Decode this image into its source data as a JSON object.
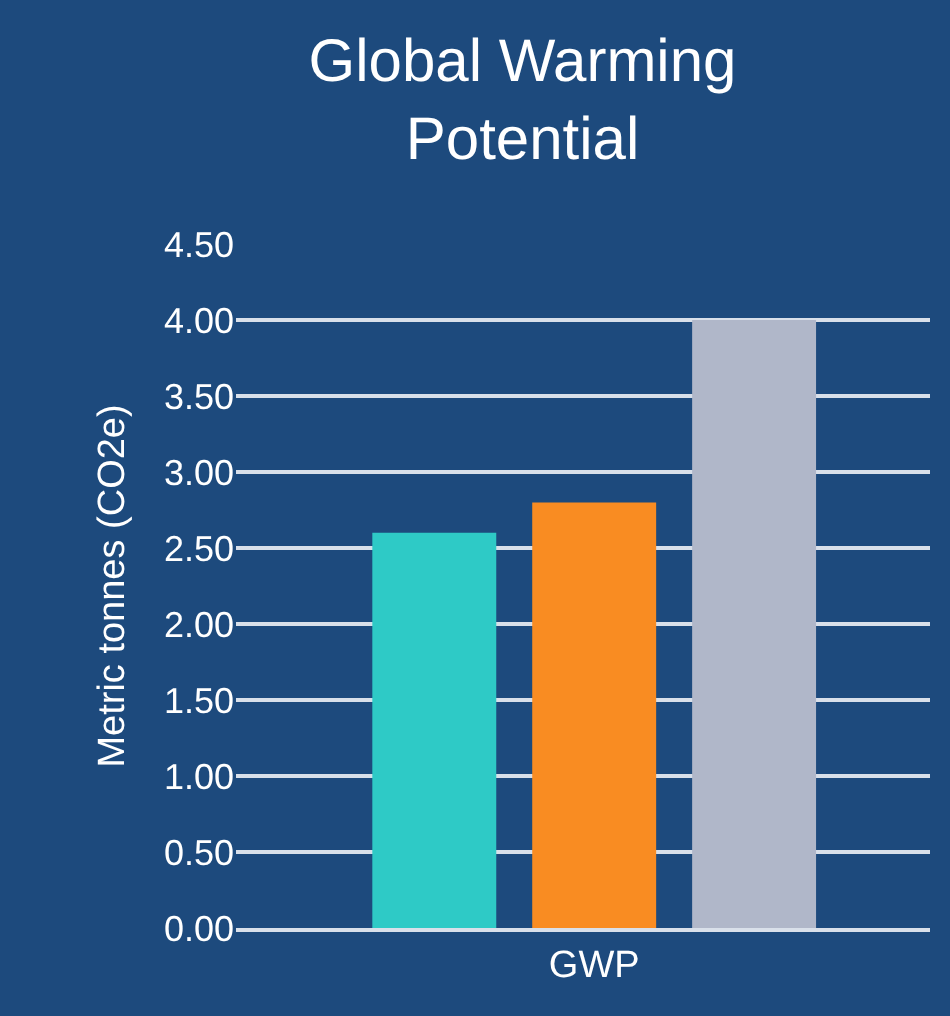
{
  "chart_data": {
    "type": "bar",
    "title": "Global Warming Potential",
    "ylabel": "Metric tonnes (CO2e)",
    "categories": [
      null,
      "GWP",
      null
    ],
    "values": [
      2.6,
      2.8,
      4.0
    ],
    "colors": [
      "#2ecac6",
      "#f98c22",
      "#b0b7c9"
    ],
    "ylim": [
      0,
      4.5
    ],
    "yticks": [
      {
        "value": 0,
        "label": "0.00"
      },
      {
        "value": 0.5,
        "label": "0.50"
      },
      {
        "value": 1,
        "label": "1.00"
      },
      {
        "value": 1.5,
        "label": "1.50"
      },
      {
        "value": 2,
        "label": "2.00"
      },
      {
        "value": 2.5,
        "label": "2.50"
      },
      {
        "value": 3,
        "label": "3.00"
      },
      {
        "value": 3.5,
        "label": "3.50"
      },
      {
        "value": 4,
        "label": "4.00"
      },
      {
        "value": 4.5,
        "label": "4.50"
      }
    ],
    "grid": "y"
  }
}
